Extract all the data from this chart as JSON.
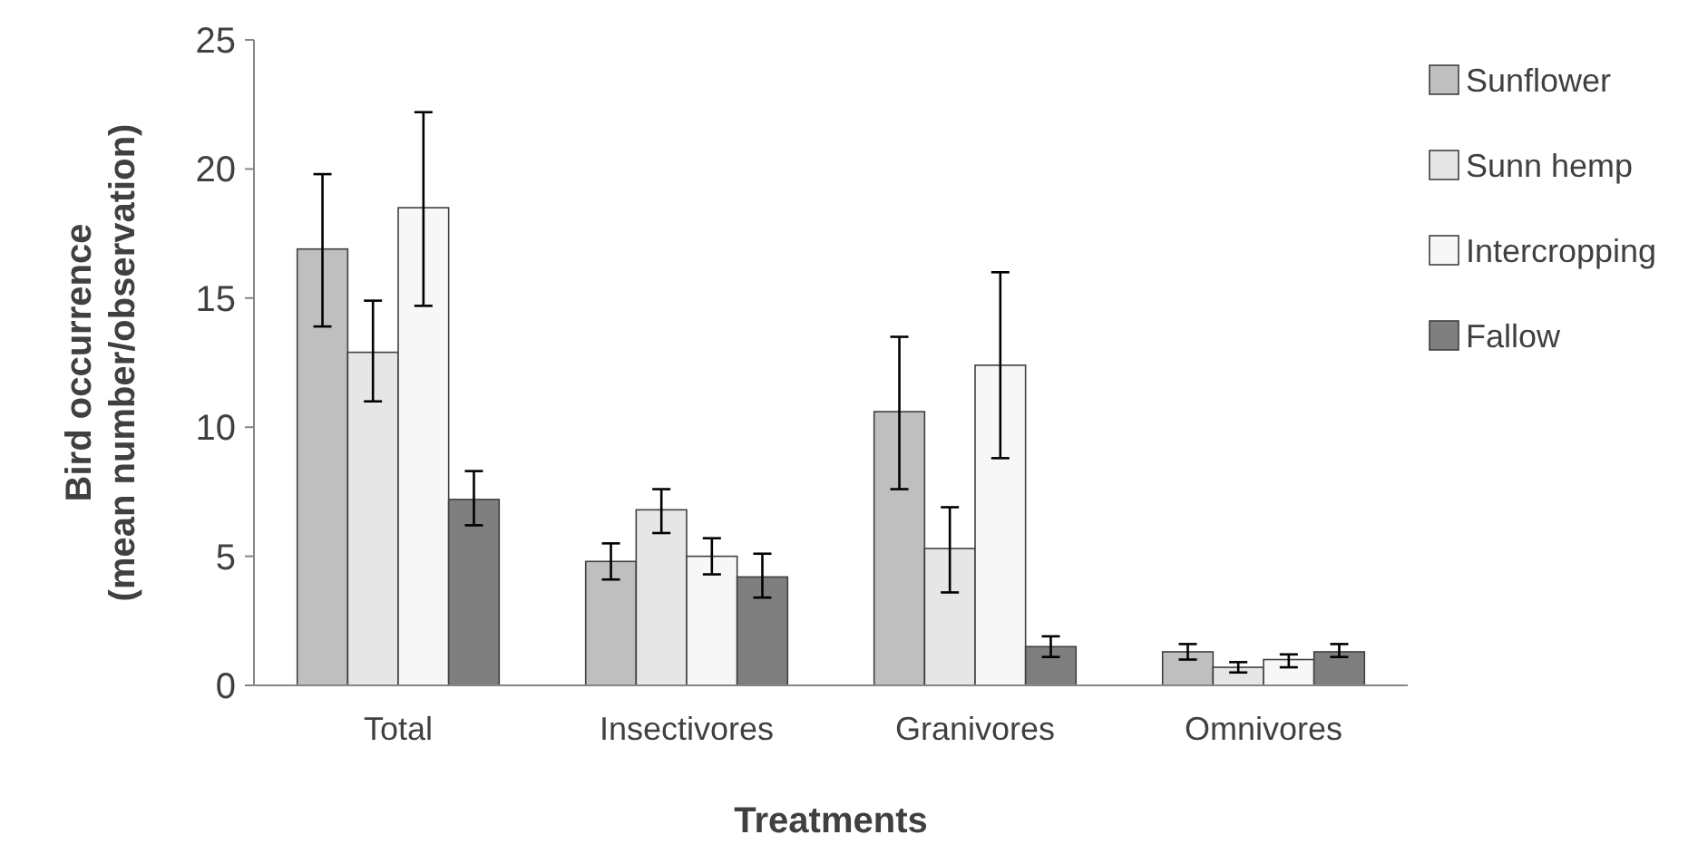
{
  "chart_data": {
    "type": "bar",
    "xlabel": "Treatments",
    "ylabel": "Bird occurrence\n(mean number/observation)",
    "categories": [
      "Total",
      "Insectivores",
      "Granivores",
      "Omnivores"
    ],
    "ylim": [
      0,
      25
    ],
    "yticks": [
      0,
      5,
      10,
      15,
      20,
      25
    ],
    "grid": false,
    "legend": "right",
    "series": [
      {
        "name": "Sunflower",
        "color": "#bfbfbf",
        "values": [
          16.9,
          4.8,
          10.6,
          1.3
        ],
        "errors": [
          [
            13.9,
            19.8
          ],
          [
            4.1,
            5.5
          ],
          [
            7.6,
            13.5
          ],
          [
            1.0,
            1.6
          ]
        ]
      },
      {
        "name": "Sunn hemp",
        "color": "#e6e6e6",
        "values": [
          12.9,
          6.8,
          5.3,
          0.7
        ],
        "errors": [
          [
            11.0,
            14.9
          ],
          [
            5.9,
            7.6
          ],
          [
            3.6,
            6.9
          ],
          [
            0.5,
            0.9
          ]
        ]
      },
      {
        "name": "Intercropping",
        "color": "#f7f7f7",
        "values": [
          18.5,
          5.0,
          12.4,
          1.0
        ],
        "errors": [
          [
            14.7,
            22.2
          ],
          [
            4.3,
            5.7
          ],
          [
            8.8,
            16.0
          ],
          [
            0.7,
            1.2
          ]
        ]
      },
      {
        "name": "Fallow",
        "color": "#7f7f7f",
        "values": [
          7.2,
          4.2,
          1.5,
          1.3
        ],
        "errors": [
          [
            6.2,
            8.3
          ],
          [
            3.4,
            5.1
          ],
          [
            1.1,
            1.9
          ],
          [
            1.1,
            1.6
          ]
        ]
      }
    ]
  }
}
